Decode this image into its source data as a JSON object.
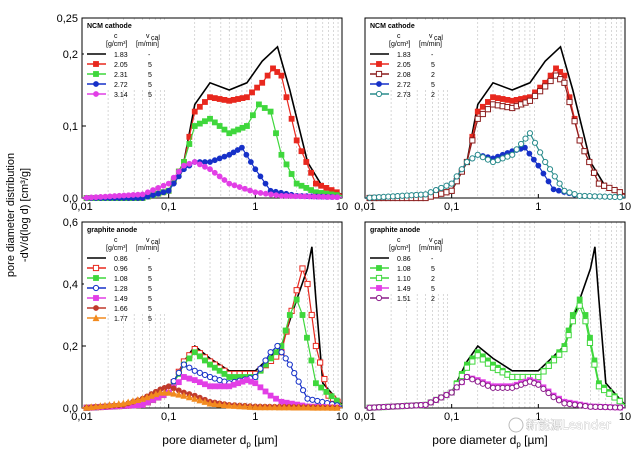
{
  "figure": {
    "ylabel_line1": "pore diameter distribution",
    "ylabel_line2": "-dV/d(log d) [cm³/g]",
    "xlabel": "pore diameter d",
    "xlabel_sub": "p",
    "xlabel_unit": " [µm]",
    "watermark": "新能源Leander"
  },
  "colors": {
    "black": "#000000",
    "red": "#e8281e",
    "green": "#3fd73c",
    "blue": "#1630c8",
    "magenta": "#e23ee6",
    "brown": "#c0392b",
    "orange": "#f28a1e",
    "teal": "#2a8c8c",
    "darkred": "#8b1d1d"
  },
  "chart_data": [
    {
      "type": "line",
      "panel_title": "NCM cathode",
      "x_scale": "log",
      "xlim": [
        0.01,
        10
      ],
      "ylim": [
        0,
        0.25
      ],
      "x_ticks": [
        "0,01",
        "0,1",
        "1",
        "10"
      ],
      "y_ticks": [
        "0,0",
        "0,1",
        "0,2"
      ],
      "y_ticks_extra": [
        "0,25"
      ],
      "legend_header": [
        "c",
        "v",
        "cal",
        "[g/cm³]",
        "[m/min]"
      ],
      "series": [
        {
          "name": "1.83",
          "v": "-",
          "color": "#000000",
          "marker": "none",
          "x": [
            0.01,
            0.05,
            0.1,
            0.15,
            0.2,
            0.3,
            0.5,
            0.8,
            1.2,
            1.8,
            2.5,
            4,
            6,
            10
          ],
          "y": [
            0.0,
            0.0,
            0.01,
            0.05,
            0.13,
            0.16,
            0.15,
            0.16,
            0.19,
            0.21,
            0.15,
            0.05,
            0.015,
            0.005
          ]
        },
        {
          "name": "2.05",
          "v": "5",
          "color": "#e8281e",
          "marker": "square",
          "x": [
            0.01,
            0.05,
            0.1,
            0.15,
            0.2,
            0.3,
            0.5,
            0.8,
            1.2,
            1.6,
            2,
            3,
            5,
            10
          ],
          "y": [
            0.0,
            0.0,
            0.01,
            0.05,
            0.12,
            0.14,
            0.135,
            0.14,
            0.16,
            0.18,
            0.17,
            0.08,
            0.02,
            0.005
          ]
        },
        {
          "name": "2.31",
          "v": "5",
          "color": "#3fd73c",
          "marker": "square",
          "x": [
            0.01,
            0.05,
            0.1,
            0.15,
            0.2,
            0.3,
            0.5,
            0.8,
            1.1,
            1.5,
            2,
            3,
            5,
            10
          ],
          "y": [
            0.0,
            0.0,
            0.01,
            0.05,
            0.1,
            0.11,
            0.09,
            0.1,
            0.13,
            0.12,
            0.06,
            0.02,
            0.008,
            0.003
          ]
        },
        {
          "name": "2.72",
          "v": "5",
          "color": "#1630c8",
          "marker": "circle",
          "x": [
            0.01,
            0.05,
            0.1,
            0.15,
            0.2,
            0.3,
            0.5,
            0.7,
            1,
            1.5,
            3,
            10
          ],
          "y": [
            0.0,
            0.0,
            0.01,
            0.04,
            0.05,
            0.05,
            0.06,
            0.07,
            0.04,
            0.01,
            0.003,
            0.001
          ]
        },
        {
          "name": "3.14",
          "v": "5",
          "color": "#e23ee6",
          "marker": "circle",
          "x": [
            0.01,
            0.05,
            0.1,
            0.15,
            0.2,
            0.3,
            0.5,
            1,
            2,
            10
          ],
          "y": [
            0.0,
            0.005,
            0.02,
            0.045,
            0.05,
            0.04,
            0.02,
            0.008,
            0.003,
            0.001
          ]
        }
      ]
    },
    {
      "type": "line",
      "panel_title": "NCM cathode",
      "x_scale": "log",
      "xlim": [
        0.01,
        10
      ],
      "ylim": [
        0,
        0.25
      ],
      "x_ticks": [
        "0,01",
        "0,1",
        "1",
        "10"
      ],
      "y_ticks": [],
      "legend_header": [
        "c",
        "v",
        "cal",
        "[g/cm³]",
        "[m/min]"
      ],
      "series": [
        {
          "name": "1.83",
          "v": "-",
          "color": "#000000",
          "marker": "none",
          "x": [
            0.01,
            0.05,
            0.1,
            0.15,
            0.2,
            0.3,
            0.5,
            0.8,
            1.2,
            1.8,
            2.5,
            4,
            6,
            10
          ],
          "y": [
            0.0,
            0.0,
            0.01,
            0.05,
            0.13,
            0.16,
            0.15,
            0.16,
            0.19,
            0.21,
            0.15,
            0.05,
            0.015,
            0.005
          ]
        },
        {
          "name": "2.05",
          "v": "5",
          "color": "#e8281e",
          "marker": "square",
          "x": [
            0.01,
            0.05,
            0.1,
            0.15,
            0.2,
            0.3,
            0.5,
            0.8,
            1.2,
            1.6,
            2,
            3,
            5,
            10
          ],
          "y": [
            0.0,
            0.0,
            0.01,
            0.05,
            0.12,
            0.14,
            0.135,
            0.14,
            0.16,
            0.18,
            0.17,
            0.08,
            0.02,
            0.005
          ]
        },
        {
          "name": "2.08",
          "v": "2",
          "color": "#8b1d1d",
          "marker": "open-square",
          "x": [
            0.01,
            0.05,
            0.1,
            0.15,
            0.2,
            0.3,
            0.5,
            0.8,
            1.2,
            1.6,
            2,
            3,
            5,
            10
          ],
          "y": [
            0.0,
            0.0,
            0.01,
            0.05,
            0.11,
            0.13,
            0.125,
            0.135,
            0.155,
            0.17,
            0.16,
            0.08,
            0.02,
            0.005
          ]
        },
        {
          "name": "2.72",
          "v": "5",
          "color": "#1630c8",
          "marker": "circle",
          "x": [
            0.01,
            0.05,
            0.1,
            0.15,
            0.2,
            0.3,
            0.5,
            0.7,
            1,
            1.5,
            3,
            10
          ],
          "y": [
            0.0,
            0.005,
            0.02,
            0.05,
            0.06,
            0.055,
            0.065,
            0.07,
            0.045,
            0.012,
            0.003,
            0.001
          ]
        },
        {
          "name": "2.73",
          "v": "2",
          "color": "#2a8c8c",
          "marker": "open-circle",
          "x": [
            0.01,
            0.05,
            0.1,
            0.15,
            0.2,
            0.3,
            0.5,
            0.8,
            1.2,
            2,
            3,
            10
          ],
          "y": [
            0.0,
            0.005,
            0.02,
            0.05,
            0.06,
            0.05,
            0.06,
            0.09,
            0.05,
            0.01,
            0.003,
            0.001
          ]
        }
      ]
    },
    {
      "type": "line",
      "panel_title": "graphite anode",
      "x_scale": "log",
      "xlim": [
        0.01,
        10
      ],
      "ylim": [
        0,
        0.6
      ],
      "x_ticks": [
        "0,01",
        "0,1",
        "1",
        "10"
      ],
      "y_ticks": [
        "0,0",
        "0,2",
        "0,4",
        "0,6"
      ],
      "legend_header": [
        "c",
        "v",
        "cal",
        "[g/cm³]",
        "[m/min]"
      ],
      "series": [
        {
          "name": "0.86",
          "v": "-",
          "color": "#000000",
          "marker": "none",
          "x": [
            0.01,
            0.05,
            0.1,
            0.15,
            0.2,
            0.3,
            0.5,
            1,
            2,
            3,
            4,
            4.5,
            5,
            6,
            10
          ],
          "y": [
            0.0,
            0.01,
            0.05,
            0.15,
            0.2,
            0.16,
            0.12,
            0.12,
            0.2,
            0.35,
            0.45,
            0.52,
            0.35,
            0.08,
            0.01
          ]
        },
        {
          "name": "0.96",
          "v": "5",
          "color": "#e8281e",
          "marker": "open-square",
          "x": [
            0.01,
            0.05,
            0.1,
            0.15,
            0.2,
            0.3,
            0.5,
            1,
            2,
            3,
            3.5,
            4,
            5,
            7,
            10
          ],
          "y": [
            0.0,
            0.01,
            0.05,
            0.15,
            0.19,
            0.15,
            0.11,
            0.11,
            0.18,
            0.38,
            0.45,
            0.4,
            0.2,
            0.04,
            0.01
          ]
        },
        {
          "name": "1.08",
          "v": "5",
          "color": "#3fd73c",
          "marker": "square",
          "x": [
            0.01,
            0.05,
            0.1,
            0.15,
            0.2,
            0.3,
            0.5,
            1,
            2,
            2.5,
            3,
            3.5,
            5,
            10
          ],
          "y": [
            0.0,
            0.01,
            0.05,
            0.14,
            0.18,
            0.14,
            0.1,
            0.1,
            0.2,
            0.3,
            0.35,
            0.3,
            0.08,
            0.01
          ]
        },
        {
          "name": "1.28",
          "v": "5",
          "color": "#1630c8",
          "marker": "open-circle",
          "x": [
            0.01,
            0.05,
            0.1,
            0.15,
            0.2,
            0.3,
            0.5,
            1,
            1.5,
            1.8,
            2.5,
            4,
            10
          ],
          "y": [
            0.0,
            0.01,
            0.06,
            0.14,
            0.12,
            0.1,
            0.08,
            0.1,
            0.18,
            0.2,
            0.14,
            0.03,
            0.005
          ]
        },
        {
          "name": "1.49",
          "v": "5",
          "color": "#e23ee6",
          "marker": "square",
          "x": [
            0.01,
            0.05,
            0.1,
            0.15,
            0.2,
            0.3,
            0.5,
            0.8,
            1,
            1.5,
            2,
            4,
            10
          ],
          "y": [
            0.0,
            0.01,
            0.05,
            0.1,
            0.09,
            0.07,
            0.07,
            0.09,
            0.08,
            0.04,
            0.02,
            0.005,
            0.001
          ]
        },
        {
          "name": "1.66",
          "v": "5",
          "color": "#c0392b",
          "marker": "circle",
          "x": [
            0.01,
            0.03,
            0.05,
            0.08,
            0.1,
            0.15,
            0.2,
            0.3,
            0.5,
            1,
            10
          ],
          "y": [
            0.0,
            0.01,
            0.03,
            0.06,
            0.07,
            0.05,
            0.04,
            0.02,
            0.01,
            0.005,
            0.001
          ]
        },
        {
          "name": "1.77",
          "v": "5",
          "color": "#f28a1e",
          "marker": "triangle",
          "x": [
            0.01,
            0.03,
            0.05,
            0.08,
            0.1,
            0.15,
            0.2,
            0.3,
            0.5,
            1,
            10
          ],
          "y": [
            0.0,
            0.015,
            0.03,
            0.05,
            0.05,
            0.04,
            0.03,
            0.015,
            0.008,
            0.003,
            0.001
          ]
        }
      ]
    },
    {
      "type": "line",
      "panel_title": "graphite anode",
      "x_scale": "log",
      "xlim": [
        0.01,
        10
      ],
      "ylim": [
        0,
        0.6
      ],
      "x_ticks": [
        "0,01",
        "0,1",
        "1",
        "10"
      ],
      "y_ticks": [],
      "legend_header": [
        "c",
        "v",
        "cal",
        "[g/cm³]",
        "[m/min]"
      ],
      "series": [
        {
          "name": "0.86",
          "v": "-",
          "color": "#000000",
          "marker": "none",
          "x": [
            0.01,
            0.05,
            0.1,
            0.15,
            0.2,
            0.3,
            0.5,
            1,
            2,
            3,
            4,
            4.5,
            5,
            6,
            10
          ],
          "y": [
            0.0,
            0.01,
            0.05,
            0.15,
            0.2,
            0.16,
            0.12,
            0.12,
            0.2,
            0.35,
            0.45,
            0.52,
            0.35,
            0.08,
            0.01
          ]
        },
        {
          "name": "1.08",
          "v": "5",
          "color": "#3fd73c",
          "marker": "square",
          "x": [
            0.01,
            0.05,
            0.1,
            0.15,
            0.2,
            0.3,
            0.5,
            1,
            2,
            2.5,
            3,
            3.5,
            5,
            10
          ],
          "y": [
            0.0,
            0.01,
            0.05,
            0.14,
            0.18,
            0.14,
            0.1,
            0.1,
            0.2,
            0.3,
            0.35,
            0.3,
            0.08,
            0.01
          ]
        },
        {
          "name": "1.10",
          "v": "2",
          "color": "#3fd73c",
          "marker": "open-square",
          "x": [
            0.01,
            0.05,
            0.1,
            0.15,
            0.2,
            0.3,
            0.5,
            1,
            2,
            2.5,
            3,
            3.5,
            5,
            10
          ],
          "y": [
            0.0,
            0.01,
            0.05,
            0.13,
            0.17,
            0.13,
            0.1,
            0.1,
            0.19,
            0.28,
            0.33,
            0.28,
            0.07,
            0.01
          ]
        },
        {
          "name": "1.49",
          "v": "5",
          "color": "#e23ee6",
          "marker": "square",
          "x": [
            0.01,
            0.05,
            0.1,
            0.15,
            0.2,
            0.3,
            0.5,
            0.8,
            1,
            1.5,
            2,
            4,
            10
          ],
          "y": [
            0.0,
            0.01,
            0.05,
            0.1,
            0.09,
            0.07,
            0.07,
            0.09,
            0.08,
            0.04,
            0.02,
            0.005,
            0.001
          ]
        },
        {
          "name": "1.51",
          "v": "2",
          "color": "#8b1d8b",
          "marker": "open-circle",
          "x": [
            0.01,
            0.05,
            0.1,
            0.15,
            0.2,
            0.3,
            0.5,
            0.8,
            1,
            1.5,
            2,
            4,
            10
          ],
          "y": [
            0.0,
            0.01,
            0.05,
            0.1,
            0.085,
            0.065,
            0.065,
            0.085,
            0.075,
            0.035,
            0.015,
            0.004,
            0.001
          ]
        }
      ]
    }
  ]
}
